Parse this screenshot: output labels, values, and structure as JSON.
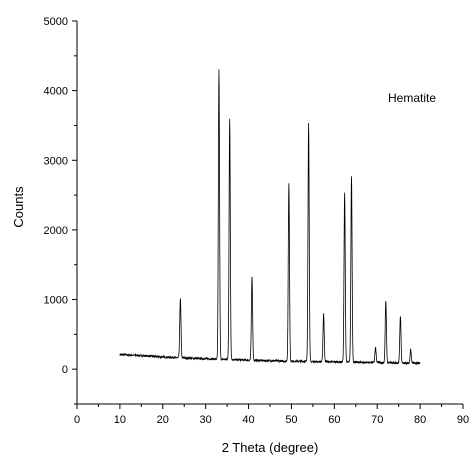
{
  "chart_data": {
    "type": "line",
    "title": "",
    "xlabel": "2 Theta (degree)",
    "ylabel": "Counts",
    "annotation": "Hematite",
    "xlim": [
      0,
      90
    ],
    "ylim": [
      -500,
      5000
    ],
    "x_ticks": [
      0,
      10,
      20,
      30,
      40,
      50,
      60,
      70,
      80,
      90
    ],
    "y_ticks": [
      0,
      1000,
      2000,
      3000,
      4000,
      5000
    ],
    "grid": false,
    "legend": "none",
    "line_color": "#000000",
    "baseline": {
      "x": [
        10,
        15,
        20,
        25,
        30,
        35,
        40,
        45,
        50,
        55,
        60,
        65,
        70,
        75,
        80
      ],
      "y": [
        210,
        195,
        175,
        160,
        150,
        140,
        130,
        120,
        115,
        110,
        105,
        100,
        95,
        90,
        85
      ]
    },
    "peaks": [
      {
        "x": 24.1,
        "y": 1020
      },
      {
        "x": 33.1,
        "y": 4300
      },
      {
        "x": 35.6,
        "y": 3600
      },
      {
        "x": 40.8,
        "y": 1330
      },
      {
        "x": 49.4,
        "y": 2660
      },
      {
        "x": 54.0,
        "y": 3530
      },
      {
        "x": 57.5,
        "y": 800
      },
      {
        "x": 62.4,
        "y": 2530
      },
      {
        "x": 64.0,
        "y": 2780
      },
      {
        "x": 69.6,
        "y": 310
      },
      {
        "x": 72.0,
        "y": 980
      },
      {
        "x": 75.4,
        "y": 770
      },
      {
        "x": 77.8,
        "y": 280
      }
    ]
  }
}
